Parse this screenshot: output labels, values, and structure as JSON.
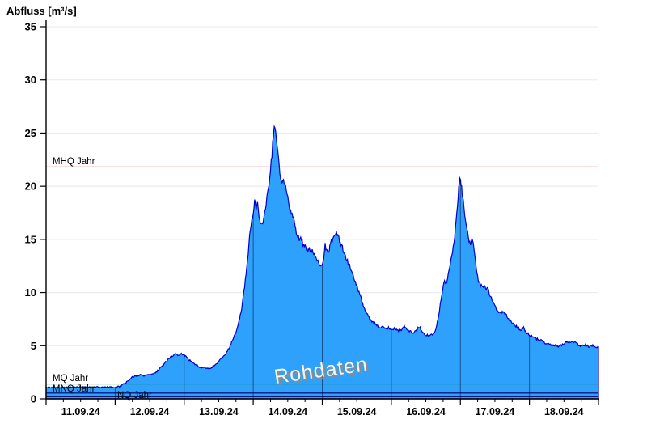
{
  "window": {
    "title": "Abfluss [m³/s]"
  },
  "chart_data": {
    "type": "area",
    "title": "Abfluss [m³/s]",
    "ylabel": "Abfluss [m³/s]",
    "watermark": "Rohdaten",
    "ylim": [
      0,
      35
    ],
    "y_ticks": [
      0,
      5,
      10,
      15,
      20,
      25,
      30,
      35
    ],
    "x_tick_labels": [
      "11.09.24",
      "12.09.24",
      "13.09.24",
      "14.09.24",
      "15.09.24",
      "16.09.24",
      "17.09.24",
      "18.09.24"
    ],
    "x_range_hours": 192,
    "minor_tick_hours": 6,
    "grid": {
      "horizontal": true,
      "vertical_day_lines_inside_area": true
    },
    "legend": "none",
    "reference_lines": [
      {
        "id": "mhq",
        "label": "MHQ Jahr",
        "value": 21.8,
        "color": "#d00000"
      },
      {
        "id": "mq",
        "label": "MQ Jahr",
        "value": 1.4,
        "color": "#007800"
      },
      {
        "id": "mnq",
        "label": "MNQ Jahr",
        "value": 0.55,
        "color": "#000066"
      },
      {
        "id": "nq",
        "label": "NQ Jahr",
        "value": 0.2,
        "color": "#000066"
      }
    ],
    "colors": {
      "fill": "#2ea1fc",
      "line": "#0000cd",
      "grid": "#e8e8e8",
      "axis": "#000000",
      "day_line": "rgba(0,0,40,0.5)",
      "watermark_face": "#f7f7f7",
      "watermark_shadow": "#8c8c8c"
    },
    "noise": {
      "amplitude_base": 0.05,
      "amplitude_per_unit": 0.012,
      "step_hours": 0.25,
      "seed": 7
    },
    "series": [
      {
        "name": "Rohdaten",
        "unit": "m³/s",
        "points": [
          [
            0,
            1.1
          ],
          [
            3,
            1.08
          ],
          [
            6,
            1.05
          ],
          [
            9,
            1.12
          ],
          [
            12,
            1.1
          ],
          [
            15,
            1.08
          ],
          [
            18,
            1.12
          ],
          [
            21,
            1.1
          ],
          [
            24,
            1.1
          ],
          [
            26,
            1.2
          ],
          [
            27,
            1.4
          ],
          [
            28,
            1.6
          ],
          [
            29,
            1.85
          ],
          [
            30,
            2.05
          ],
          [
            31,
            2.15
          ],
          [
            32,
            2.2
          ],
          [
            33,
            2.25
          ],
          [
            34,
            2.2
          ],
          [
            35,
            2.3
          ],
          [
            36,
            2.3
          ],
          [
            37,
            2.4
          ],
          [
            38,
            2.5
          ],
          [
            39,
            2.7
          ],
          [
            40,
            3.0
          ],
          [
            41,
            3.3
          ],
          [
            42,
            3.6
          ],
          [
            43,
            3.9
          ],
          [
            44,
            4.1
          ],
          [
            45,
            4.2
          ],
          [
            46,
            4.15
          ],
          [
            47,
            4.2
          ],
          [
            48,
            4.1
          ],
          [
            49,
            3.9
          ],
          [
            50,
            3.6
          ],
          [
            51,
            3.4
          ],
          [
            52,
            3.2
          ],
          [
            53,
            3.05
          ],
          [
            54,
            2.95
          ],
          [
            55,
            2.9
          ],
          [
            56,
            2.85
          ],
          [
            57,
            2.9
          ],
          [
            58,
            3.05
          ],
          [
            59,
            3.2
          ],
          [
            60,
            3.5
          ],
          [
            61,
            3.8
          ],
          [
            62,
            4.1
          ],
          [
            63,
            4.5
          ],
          [
            64,
            5.0
          ],
          [
            65,
            5.6
          ],
          [
            66,
            6.3
          ],
          [
            67,
            7.2
          ],
          [
            68,
            8.5
          ],
          [
            69,
            10.5
          ],
          [
            70,
            13.0
          ],
          [
            71,
            16.0
          ],
          [
            72,
            17.5
          ],
          [
            72.5,
            18.6
          ],
          [
            73,
            17.9
          ],
          [
            73.5,
            18.4
          ],
          [
            74,
            17.2
          ],
          [
            74.5,
            16.5
          ],
          [
            75,
            16.3
          ],
          [
            75.5,
            16.9
          ],
          [
            76,
            17.6
          ],
          [
            76.5,
            18.4
          ],
          [
            77,
            19.3
          ],
          [
            77.5,
            20.3
          ],
          [
            78,
            21.5
          ],
          [
            78.5,
            23.0
          ],
          [
            79,
            24.8
          ],
          [
            79.3,
            25.7
          ],
          [
            79.8,
            25.0
          ],
          [
            80.3,
            23.8
          ],
          [
            81,
            21.9
          ],
          [
            81.5,
            20.9
          ],
          [
            82,
            20.4
          ],
          [
            82.5,
            20.8
          ],
          [
            83,
            20.2
          ],
          [
            83.5,
            19.5
          ],
          [
            84,
            18.9
          ],
          [
            84.5,
            18.2
          ],
          [
            85,
            17.6
          ],
          [
            85.5,
            17.4
          ],
          [
            86,
            17.1
          ],
          [
            86.5,
            16.3
          ],
          [
            87,
            15.6
          ],
          [
            87.5,
            15.2
          ],
          [
            88,
            15.0
          ],
          [
            88.5,
            15.2
          ],
          [
            89,
            14.8
          ],
          [
            89.5,
            14.4
          ],
          [
            90,
            14.6
          ],
          [
            90.5,
            14.2
          ],
          [
            91,
            13.9
          ],
          [
            91.5,
            14.15
          ],
          [
            92,
            13.8
          ],
          [
            92.5,
            13.95
          ],
          [
            93,
            13.7
          ],
          [
            93.5,
            13.55
          ],
          [
            94,
            13.3
          ],
          [
            94.5,
            13.0
          ],
          [
            95,
            12.8
          ],
          [
            95.5,
            12.6
          ],
          [
            96,
            12.55
          ],
          [
            96.5,
            13.3
          ],
          [
            97,
            14.5
          ],
          [
            97.4,
            13.9
          ],
          [
            98,
            13.8
          ],
          [
            98.6,
            14.3
          ],
          [
            99.2,
            14.8
          ],
          [
            100,
            15.3
          ],
          [
            100.9,
            15.8
          ],
          [
            101.5,
            15.3
          ],
          [
            102,
            14.9
          ],
          [
            103,
            14.2
          ],
          [
            104,
            13.4
          ],
          [
            105,
            12.8
          ],
          [
            106,
            12.2
          ],
          [
            107,
            11.4
          ],
          [
            108,
            10.6
          ],
          [
            109,
            9.8
          ],
          [
            110,
            9.0
          ],
          [
            111,
            8.3
          ],
          [
            112,
            7.7
          ],
          [
            113,
            7.3
          ],
          [
            114,
            7.1
          ],
          [
            115,
            6.9
          ],
          [
            116,
            6.8
          ],
          [
            117,
            6.7
          ],
          [
            118,
            6.6
          ],
          [
            119,
            6.7
          ],
          [
            120,
            6.5
          ],
          [
            121,
            6.6
          ],
          [
            122,
            6.4
          ],
          [
            123,
            6.5
          ],
          [
            124,
            6.6
          ],
          [
            124.5,
            7.0
          ],
          [
            125,
            6.6
          ],
          [
            126,
            6.5
          ],
          [
            127,
            6.2
          ],
          [
            128,
            6.3
          ],
          [
            129,
            6.6
          ],
          [
            130,
            6.7
          ],
          [
            131,
            6.3
          ],
          [
            132,
            6.0
          ],
          [
            133,
            5.9
          ],
          [
            134,
            6.0
          ],
          [
            135,
            6.2
          ],
          [
            136,
            7.2
          ],
          [
            137,
            8.8
          ],
          [
            137.5,
            9.8
          ],
          [
            138,
            10.6
          ],
          [
            138.5,
            11.0
          ],
          [
            139,
            10.9
          ],
          [
            139.5,
            11.2
          ],
          [
            140,
            11.9
          ],
          [
            141,
            13.4
          ],
          [
            142,
            15.2
          ],
          [
            143,
            18.0
          ],
          [
            143.4,
            19.8
          ],
          [
            143.8,
            20.7
          ],
          [
            144.2,
            20.3
          ],
          [
            144.6,
            19.4
          ],
          [
            145,
            18.5
          ],
          [
            145.5,
            17.2
          ],
          [
            146,
            16.4
          ],
          [
            147,
            14.9
          ],
          [
            147.5,
            14.6
          ],
          [
            148,
            14.9
          ],
          [
            148.5,
            14.7
          ],
          [
            149,
            13.6
          ],
          [
            149.5,
            12.4
          ],
          [
            150,
            11.4
          ],
          [
            150.5,
            10.9
          ],
          [
            151,
            10.7
          ],
          [
            152,
            10.5
          ],
          [
            152.5,
            10.65
          ],
          [
            153,
            10.3
          ],
          [
            153.5,
            10.5
          ],
          [
            154,
            9.9
          ],
          [
            155,
            9.3
          ],
          [
            156,
            8.7
          ],
          [
            157,
            8.3
          ],
          [
            158,
            8.1
          ],
          [
            159,
            8.2
          ],
          [
            160,
            7.8
          ],
          [
            161,
            7.4
          ],
          [
            162,
            7.2
          ],
          [
            163,
            6.9
          ],
          [
            164,
            6.7
          ],
          [
            165,
            6.5
          ],
          [
            166,
            6.7
          ],
          [
            167,
            6.2
          ],
          [
            168,
            6.0
          ],
          [
            169,
            5.9
          ],
          [
            170,
            5.7
          ],
          [
            171,
            5.6
          ],
          [
            172,
            5.5
          ],
          [
            173,
            5.3
          ],
          [
            174,
            5.2
          ],
          [
            175,
            5.1
          ],
          [
            176,
            5.0
          ],
          [
            177,
            5.1
          ],
          [
            178,
            4.9
          ],
          [
            179,
            5.0
          ],
          [
            180,
            5.2
          ],
          [
            181,
            5.35
          ],
          [
            182,
            5.4
          ],
          [
            183,
            5.35
          ],
          [
            184,
            5.3
          ],
          [
            185,
            5.1
          ],
          [
            186,
            5.0
          ],
          [
            187,
            5.1
          ],
          [
            188,
            5.0
          ],
          [
            189,
            4.95
          ],
          [
            190,
            5.0
          ],
          [
            191,
            4.9
          ],
          [
            192,
            4.9
          ]
        ]
      }
    ]
  }
}
